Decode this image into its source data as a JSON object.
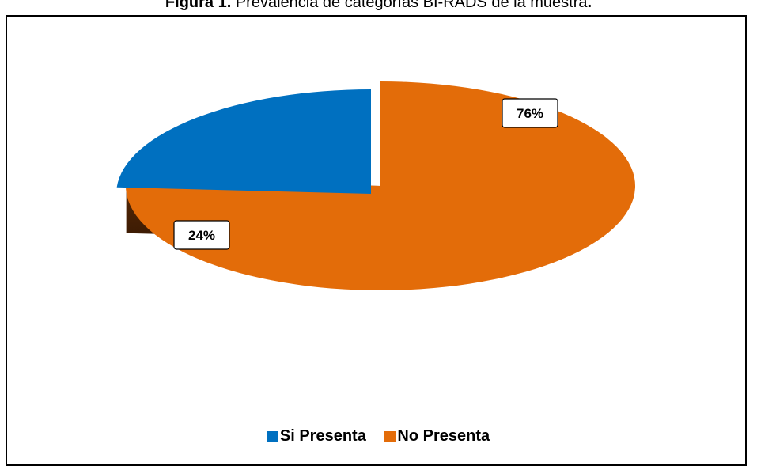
{
  "caption": {
    "prefix": "Figura 1.",
    "text": " Prevalencia de categorías BI-RADS de la muestra",
    "suffix": "."
  },
  "chart_data": {
    "type": "pie",
    "style": "3d-exploded",
    "categories": [
      "Si Presenta",
      "No Presenta"
    ],
    "values": [
      24,
      76
    ],
    "data_labels": [
      "24%",
      "76%"
    ],
    "colors": [
      "#0070C0",
      "#E36C09"
    ],
    "legend_position": "bottom"
  }
}
